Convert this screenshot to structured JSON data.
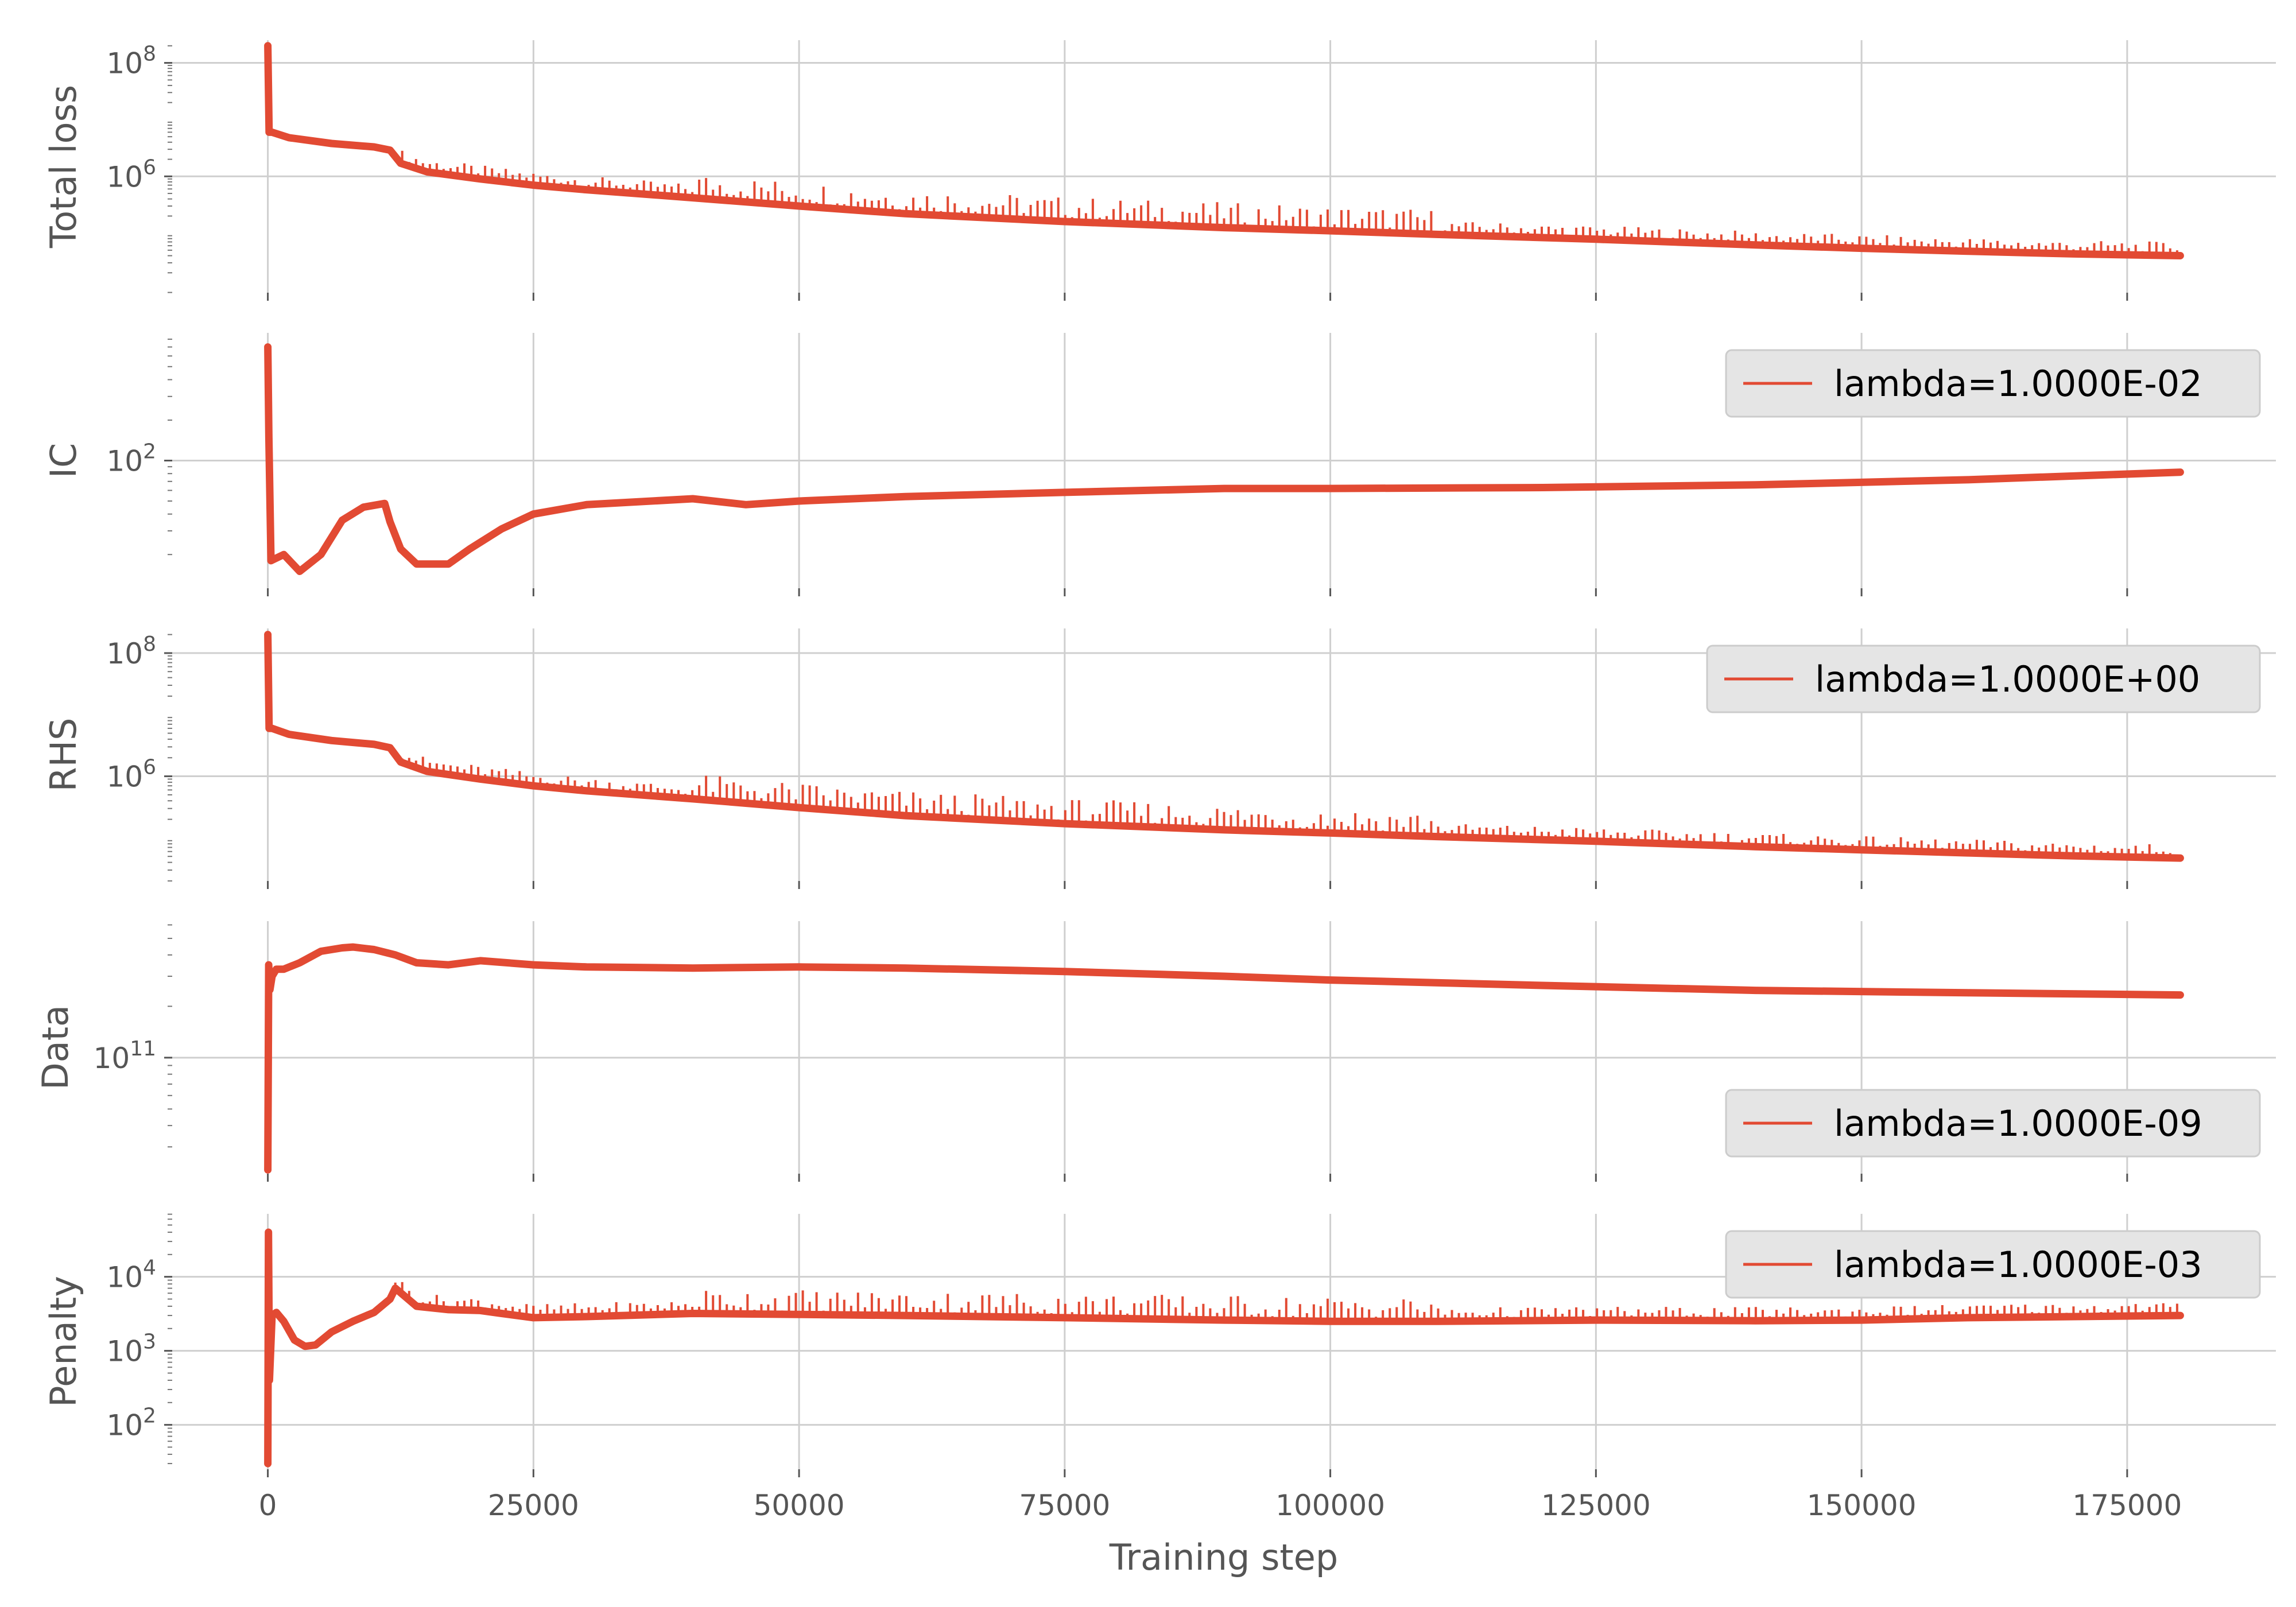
{
  "chart_data": {
    "type": "line",
    "shared_x": {
      "label": "Training step",
      "xlim": [
        -9000,
        189000
      ],
      "ticks": [
        0,
        25000,
        50000,
        75000,
        100000,
        125000,
        150000,
        175000
      ],
      "tick_labels": [
        "0",
        "25000",
        "50000",
        "75000",
        "100000",
        "125000",
        "150000",
        "175000"
      ]
    },
    "grid": true,
    "line_color": "#E24A33",
    "subplots": [
      {
        "ylabel": "Total loss",
        "yscale": "log",
        "ylim_log10": [
          3.95,
          8.4
        ],
        "yticks": [
          {
            "exp": 8,
            "label": "108"
          },
          {
            "exp": 6,
            "label": "106"
          }
        ],
        "legend": null,
        "x": [
          0,
          120,
          400,
          2000,
          6000,
          10000,
          11500,
          12500,
          15000,
          20000,
          25000,
          30000,
          40000,
          50000,
          60000,
          75000,
          90000,
          100000,
          110000,
          125000,
          140000,
          150000,
          160000,
          170000,
          180000
        ],
        "y": [
          200000000,
          6000000,
          6000000,
          4800000,
          3800000,
          3300000,
          2900000,
          1700000,
          1200000,
          900000,
          700000,
          580000,
          420000,
          300000,
          220000,
          160000,
          125000,
          110000,
          95000,
          78000,
          62000,
          54000,
          48000,
          43000,
          40000
        ]
      },
      {
        "ylabel": "IC",
        "yscale": "log",
        "ylim_log10": [
          1.05,
          2.95
        ],
        "yticks": [
          {
            "exp": 2,
            "label": "102"
          }
        ],
        "legend": {
          "label": "lambda=1.0000E-02",
          "loc": "upper right"
        },
        "x": [
          0,
          100,
          300,
          1500,
          3000,
          5000,
          7000,
          9000,
          11000,
          11500,
          12500,
          14000,
          17000,
          19000,
          22000,
          25000,
          30000,
          40000,
          45000,
          50000,
          60000,
          75000,
          90000,
          100000,
          120000,
          140000,
          160000,
          180000
        ],
        "y": [
          700,
          150,
          18,
          20,
          15,
          20,
          36,
          45,
          48,
          35,
          22,
          17,
          17,
          22,
          31,
          40,
          47,
          52,
          47,
          50,
          54,
          58,
          62,
          62,
          63,
          66,
          72,
          82
        ]
      },
      {
        "ylabel": "RHS",
        "yscale": "log",
        "ylim_log10": [
          4.3,
          8.4
        ],
        "yticks": [
          {
            "exp": 8,
            "label": "108"
          },
          {
            "exp": 6,
            "label": "106"
          }
        ],
        "legend": {
          "label": "lambda=1.0000E+00",
          "loc": "upper right"
        },
        "x": [
          0,
          120,
          400,
          2000,
          6000,
          10000,
          11500,
          12500,
          15000,
          20000,
          25000,
          30000,
          40000,
          50000,
          60000,
          75000,
          90000,
          100000,
          110000,
          125000,
          140000,
          150000,
          160000,
          170000,
          180000
        ],
        "y": [
          200000000,
          6000000,
          6000000,
          4800000,
          3800000,
          3300000,
          2900000,
          1700000,
          1200000,
          900000,
          700000,
          580000,
          430000,
          310000,
          230000,
          170000,
          135000,
          120000,
          105000,
          88000,
          72000,
          64000,
          57000,
          51000,
          47000
        ]
      },
      {
        "ylabel": "Data",
        "yscale": "log",
        "ylim_log10": [
          10.32,
          11.8
        ],
        "yticks": [
          {
            "exp": 11,
            "label": "1011"
          }
        ],
        "legend": {
          "label": "lambda=1.0000E-09",
          "loc": "lower right"
        },
        "x": [
          0,
          80,
          200,
          400,
          800,
          1500,
          3000,
          5000,
          7000,
          8000,
          10000,
          12000,
          14000,
          17000,
          20000,
          25000,
          30000,
          40000,
          50000,
          60000,
          75000,
          90000,
          100000,
          120000,
          140000,
          160000,
          180000
        ],
        "y": [
          22000000000,
          350000000000,
          250000000000,
          300000000000,
          330000000000,
          330000000000,
          360000000000,
          420000000000,
          440000000000,
          445000000000,
          430000000000,
          400000000000,
          360000000000,
          350000000000,
          370000000000,
          350000000000,
          340000000000,
          335000000000,
          340000000000,
          335000000000,
          320000000000,
          300000000000,
          285000000000,
          265000000000,
          248000000000,
          240000000000,
          233000000000
        ]
      },
      {
        "ylabel": "Penalty",
        "yscale": "log",
        "ylim_log10": [
          1.4,
          4.85
        ],
        "yticks": [
          {
            "exp": 4,
            "label": "104"
          },
          {
            "exp": 3,
            "label": "103"
          },
          {
            "exp": 2,
            "label": "102"
          }
        ],
        "legend": {
          "label": "lambda=1.0000E-03",
          "loc": "upper right"
        },
        "x": [
          0,
          60,
          150,
          400,
          800,
          1500,
          2500,
          3500,
          4500,
          6000,
          8000,
          10000,
          11500,
          12000,
          14000,
          17000,
          20000,
          22000,
          25000,
          30000,
          40000,
          50000,
          60000,
          75000,
          90000,
          100000,
          110000,
          125000,
          140000,
          150000,
          160000,
          170000,
          180000
        ],
        "y": [
          30,
          40000,
          400,
          3000,
          3300,
          2500,
          1400,
          1150,
          1200,
          1800,
          2500,
          3300,
          5000,
          7000,
          4000,
          3600,
          3500,
          3200,
          2800,
          2900,
          3200,
          3100,
          3000,
          2800,
          2600,
          2500,
          2500,
          2600,
          2550,
          2600,
          2800,
          2900,
          3000
        ]
      }
    ],
    "axis_ranges_note": "x in training steps; y log-scaled, limits given as log10 of data values"
  }
}
